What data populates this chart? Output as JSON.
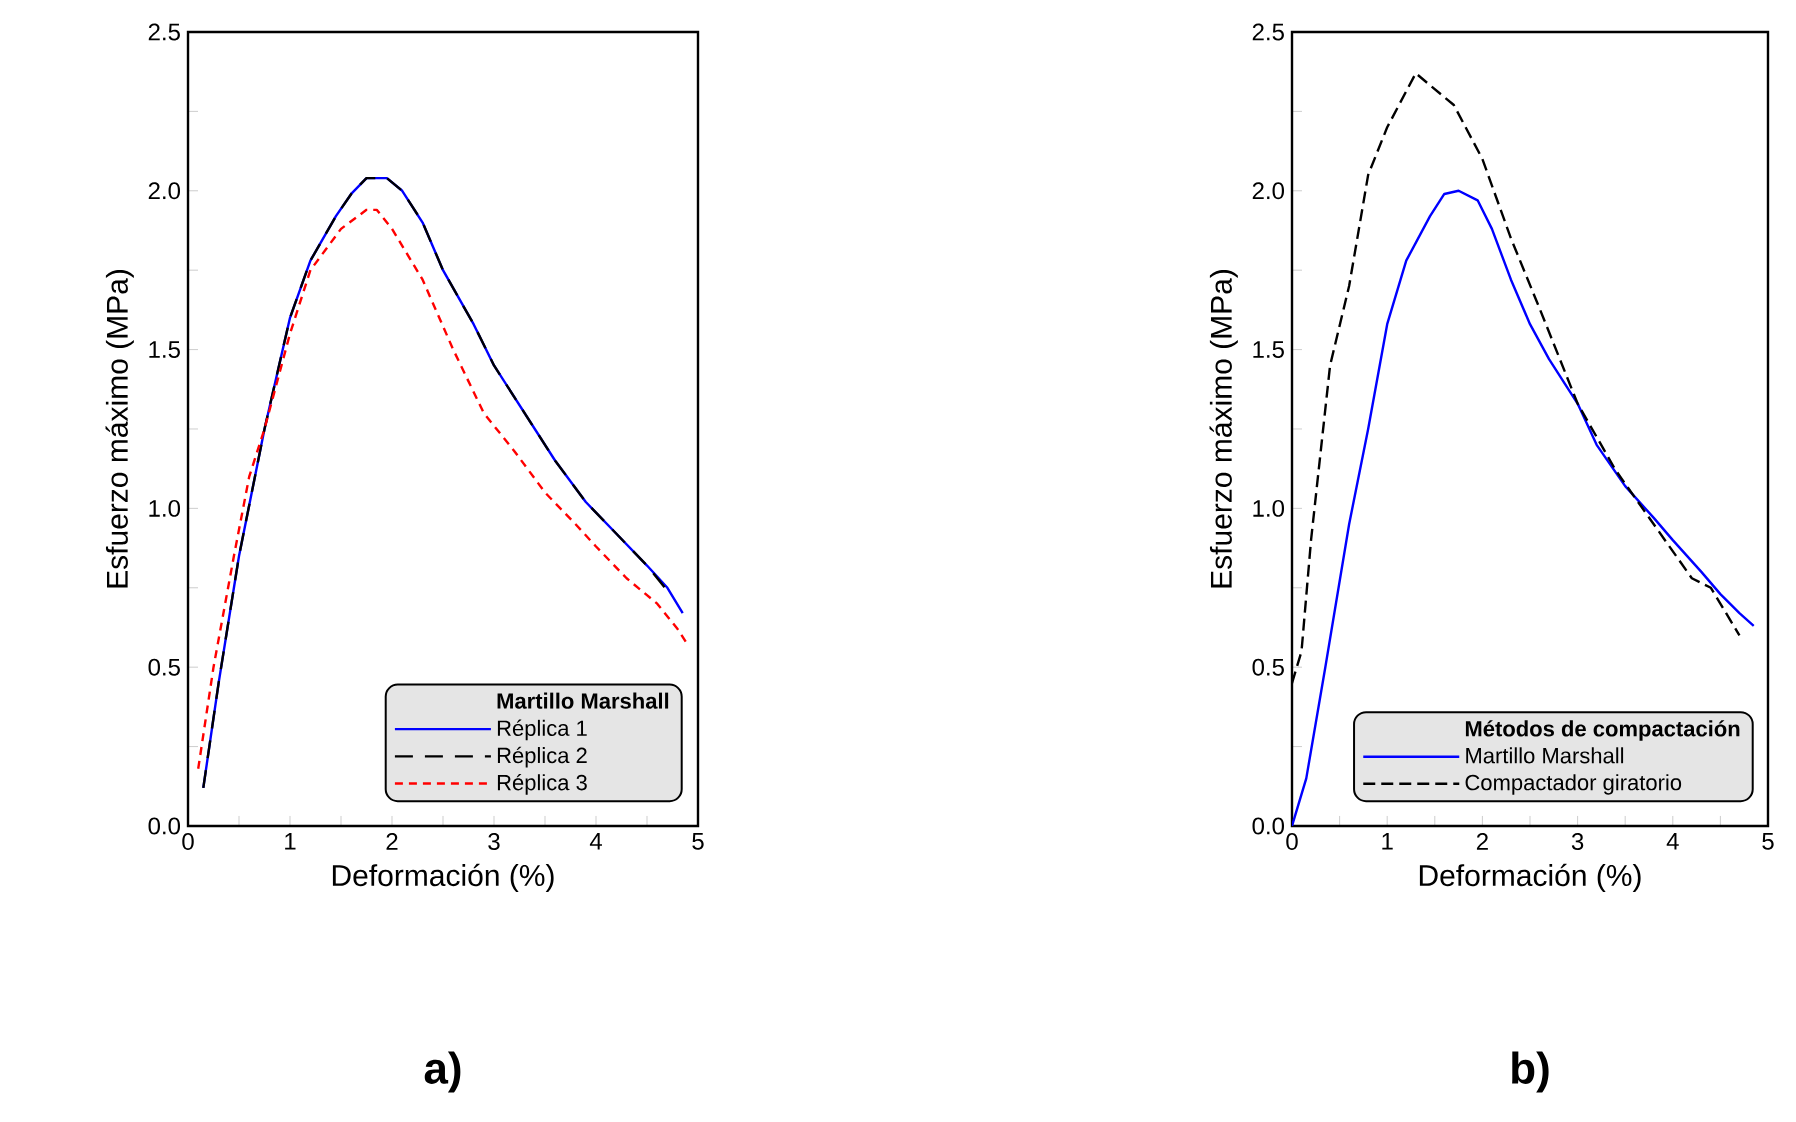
{
  "chart_data": [
    {
      "type": "line",
      "xlabel": "Deformación (%)",
      "ylabel": "Esfuerzo máximo (MPa)",
      "legend_title": "Martillo Marshall",
      "legend": "bottom right",
      "grid": false,
      "marker": "none",
      "xlim": [
        0,
        5
      ],
      "ylim": [
        0,
        2.5
      ],
      "xticks": [
        0,
        1,
        2,
        3,
        4,
        5
      ],
      "yticks": [
        {
          "value": 0,
          "label": "0.0"
        },
        0.5,
        {
          "value": 1,
          "label": "1.0"
        },
        1.5,
        {
          "value": 2,
          "label": "2.0"
        },
        2.5
      ],
      "annotations": [
        "a)"
      ],
      "series": [
        {
          "name": "Réplica 1",
          "color": "#0000ff",
          "line_style": "solid",
          "x": [
            0.15,
            0.3,
            0.5,
            0.75,
            1.0,
            1.2,
            1.45,
            1.6,
            1.75,
            1.95,
            2.1,
            2.3,
            2.5,
            2.8,
            3.0,
            3.3,
            3.6,
            3.9,
            4.2,
            4.5,
            4.7,
            4.85
          ],
          "values": [
            0.12,
            0.45,
            0.85,
            1.25,
            1.6,
            1.78,
            1.92,
            1.99,
            2.04,
            2.04,
            2.0,
            1.9,
            1.75,
            1.58,
            1.45,
            1.3,
            1.15,
            1.02,
            0.92,
            0.82,
            0.75,
            0.67
          ]
        },
        {
          "name": "Réplica 2",
          "color": "#000000",
          "line_style": "dashed",
          "x": [
            0.15,
            0.3,
            0.5,
            0.75,
            1.0,
            1.2,
            1.45,
            1.6,
            1.75,
            1.95,
            2.1,
            2.3,
            2.5,
            2.8,
            3.0,
            3.3,
            3.6,
            3.9,
            4.2,
            4.5,
            4.7
          ],
          "values": [
            0.12,
            0.45,
            0.85,
            1.25,
            1.6,
            1.78,
            1.92,
            1.99,
            2.04,
            2.04,
            2.0,
            1.9,
            1.75,
            1.58,
            1.45,
            1.3,
            1.15,
            1.02,
            0.92,
            0.82,
            0.74
          ]
        },
        {
          "name": "Réplica 3",
          "color": "#ff0000",
          "line_style": "dashed",
          "x": [
            0.1,
            0.25,
            0.45,
            0.6,
            0.75,
            1.0,
            1.2,
            1.5,
            1.75,
            1.85,
            2.0,
            2.3,
            2.6,
            2.9,
            3.2,
            3.5,
            3.8,
            4.0,
            4.3,
            4.6,
            4.8,
            4.9
          ],
          "values": [
            0.18,
            0.5,
            0.85,
            1.1,
            1.25,
            1.55,
            1.75,
            1.88,
            1.94,
            1.94,
            1.88,
            1.72,
            1.5,
            1.3,
            1.18,
            1.05,
            0.95,
            0.88,
            0.78,
            0.7,
            0.62,
            0.57
          ]
        }
      ]
    },
    {
      "type": "line",
      "xlabel": "Deformación (%)",
      "ylabel": "Esfuerzo máximo (MPa)",
      "legend_title": "Métodos de compactación",
      "legend": "bottom right",
      "grid": false,
      "marker": "none",
      "xlim": [
        0,
        5
      ],
      "ylim": [
        0,
        2.5
      ],
      "xticks": [
        0,
        1,
        2,
        3,
        4,
        5
      ],
      "yticks": [
        {
          "value": 0,
          "label": "0.0"
        },
        0.5,
        {
          "value": 1,
          "label": "1.0"
        },
        1.5,
        {
          "value": 2,
          "label": "2.0"
        },
        2.5
      ],
      "annotations": [
        "b)"
      ],
      "series": [
        {
          "name": "Martillo Marshall",
          "color": "#0000ff",
          "line_style": "solid",
          "x": [
            0,
            0.15,
            0.35,
            0.6,
            0.8,
            1.0,
            1.2,
            1.45,
            1.6,
            1.75,
            1.95,
            2.1,
            2.3,
            2.5,
            2.7,
            3.0,
            3.2,
            3.5,
            3.8,
            4.0,
            4.3,
            4.5,
            4.7,
            4.85
          ],
          "values": [
            0,
            0.15,
            0.5,
            0.95,
            1.25,
            1.58,
            1.78,
            1.92,
            1.99,
            2.0,
            1.97,
            1.88,
            1.72,
            1.58,
            1.47,
            1.33,
            1.2,
            1.07,
            0.97,
            0.9,
            0.8,
            0.73,
            0.67,
            0.63
          ]
        },
        {
          "name": "Compactador giratorio",
          "color": "#000000",
          "line_style": "dashed",
          "x": [
            0,
            0.1,
            0.2,
            0.4,
            0.6,
            0.8,
            1.0,
            1.3,
            1.7,
            2.0,
            2.3,
            2.6,
            3.0,
            3.4,
            3.8,
            4.2,
            4.4,
            4.7
          ],
          "values": [
            0.45,
            0.55,
            0.9,
            1.45,
            1.7,
            2.05,
            2.2,
            2.37,
            2.27,
            2.1,
            1.85,
            1.63,
            1.33,
            1.12,
            0.95,
            0.78,
            0.75,
            0.6
          ]
        }
      ]
    }
  ]
}
